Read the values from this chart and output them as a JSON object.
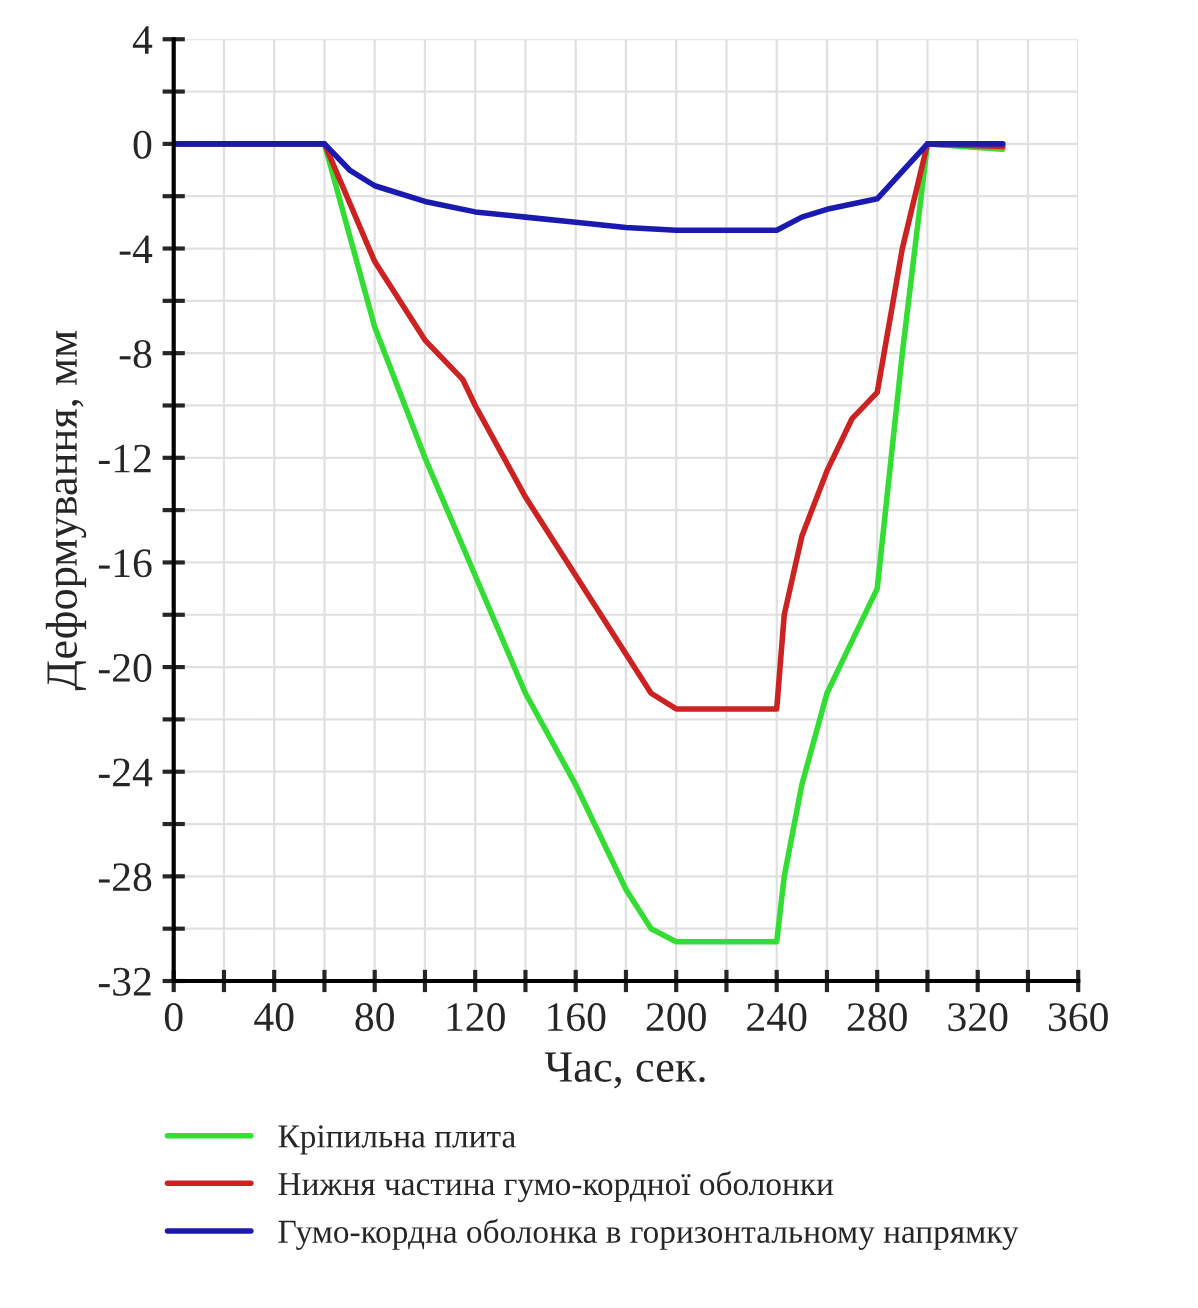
{
  "chart_data": {
    "type": "line",
    "xlabel": "Час, сек.",
    "ylabel": "Деформування, мм",
    "xlim": [
      0,
      360
    ],
    "ylim": [
      -32,
      4
    ],
    "xticks": [
      0,
      {
        "value": 20,
        "label": null
      },
      40,
      {
        "value": 60,
        "label": null
      },
      80,
      {
        "value": 100,
        "label": null
      },
      120,
      {
        "value": 140,
        "label": null
      },
      160,
      {
        "value": 180,
        "label": null
      },
      200,
      {
        "value": 220,
        "label": null
      },
      240,
      {
        "value": 260,
        "label": null
      },
      280,
      {
        "value": 300,
        "label": null
      },
      320,
      {
        "value": 340,
        "label": null
      },
      360
    ],
    "yticks": [
      4,
      {
        "value": 2,
        "label": null
      },
      0,
      {
        "value": -2,
        "label": null
      },
      {
        "value": -4,
        "label": "-4"
      },
      {
        "value": -6,
        "label": null
      },
      {
        "value": -8,
        "label": "-8"
      },
      {
        "value": -10,
        "label": null
      },
      {
        "value": -12,
        "label": "-12"
      },
      {
        "value": -14,
        "label": null
      },
      {
        "value": -16,
        "label": "-16"
      },
      {
        "value": -18,
        "label": null
      },
      {
        "value": -20,
        "label": "-20"
      },
      {
        "value": -22,
        "label": null
      },
      {
        "value": -24,
        "label": "-24"
      },
      {
        "value": -26,
        "label": null
      },
      {
        "value": -28,
        "label": "-28"
      },
      {
        "value": -30,
        "label": null
      },
      {
        "value": -32,
        "label": "-32"
      }
    ],
    "grid": true,
    "legend": "bottom",
    "marker": "none",
    "line_style": "solid",
    "series": [
      {
        "name": "Кріпильна плита",
        "color": "#33dd33",
        "x": [
          0,
          60,
          70,
          80,
          100,
          120,
          140,
          160,
          180,
          190,
          200,
          240,
          243,
          250,
          260,
          270,
          280,
          290,
          300,
          330
        ],
        "values": [
          0,
          0,
          -3.5,
          -7,
          -12,
          -16.5,
          -21,
          -24.5,
          -28.5,
          -30,
          -30.5,
          -30.5,
          -28,
          -24.5,
          -21,
          -19,
          -17,
          -8,
          0,
          -0.2
        ]
      },
      {
        "name": "Нижня частина гумо-кордної оболонки",
        "color": "#cc2222",
        "x": [
          0,
          60,
          80,
          100,
          115,
          120,
          140,
          160,
          180,
          190,
          200,
          240,
          243,
          250,
          260,
          270,
          280,
          290,
          300,
          330
        ],
        "values": [
          0,
          0,
          -4.5,
          -7.5,
          -9,
          -10,
          -13.5,
          -16.5,
          -19.5,
          -21,
          -21.6,
          -21.6,
          -18,
          -15,
          -12.5,
          -10.5,
          -9.5,
          -4,
          0,
          -0.1
        ]
      },
      {
        "name": "Гумо-кордна оболонка в горизонтальному напрямку",
        "color": "#1a1ab0",
        "x": [
          0,
          60,
          70,
          80,
          100,
          120,
          140,
          160,
          180,
          200,
          240,
          250,
          260,
          280,
          300,
          330
        ],
        "values": [
          0,
          0,
          -1,
          -1.6,
          -2.2,
          -2.6,
          -2.8,
          -3.0,
          -3.2,
          -3.3,
          -3.3,
          -2.8,
          -2.5,
          -2.1,
          0,
          0
        ]
      }
    ]
  }
}
